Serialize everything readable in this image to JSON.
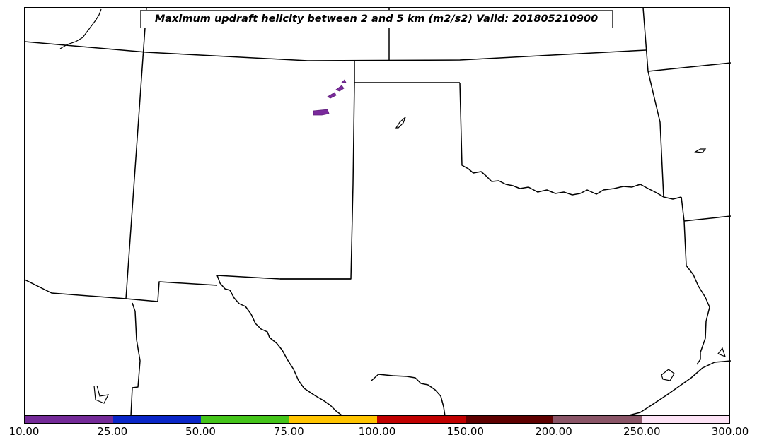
{
  "title": "Maximum updraft helicity between 2 and 5 km (m2/s2) Valid: 201805210900",
  "colorbar": {
    "ticks": [
      "10.00",
      "25.00",
      "50.00",
      "75.00",
      "100.00",
      "150.00",
      "200.00",
      "250.00",
      "300.00"
    ],
    "colors": [
      "#742a98",
      "#0a26c8",
      "#44c41a",
      "#ffc400",
      "#c00000",
      "#5e0000",
      "#8a5567",
      "#fde3f6"
    ]
  },
  "map": {
    "outline_color": "#000000",
    "helicity_fill_color": "#7a2a9c"
  }
}
